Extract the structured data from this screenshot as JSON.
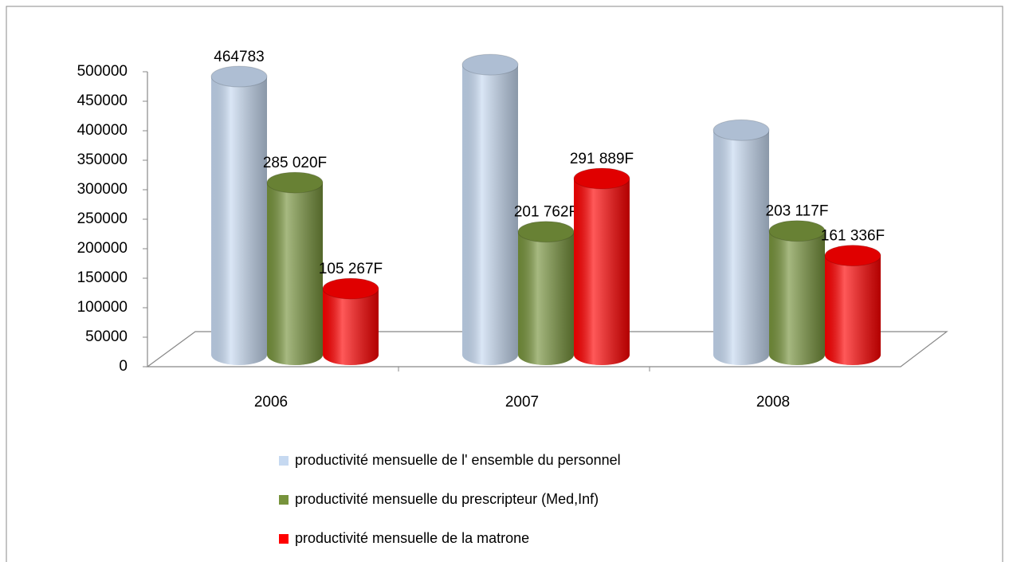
{
  "chart_data": {
    "type": "bar",
    "categories": [
      "2006",
      "2007",
      "2008"
    ],
    "series": [
      {
        "name": "productivité mensuelle de l' ensemble du personnel",
        "color": "#c6d9f1",
        "values": [
          464783,
          485000,
          374000
        ],
        "value_labels": [
          "464783",
          null,
          null
        ]
      },
      {
        "name": "productivité mensuelle du prescripteur (Med,Inf)",
        "color": "#77933c",
        "values": [
          285020,
          201762,
          203117
        ],
        "value_labels": [
          "285 020F",
          "201 762F",
          "203 117F"
        ]
      },
      {
        "name": "productivité mensuelle de la matrone",
        "color": "#ff0000",
        "values": [
          105267,
          291889,
          161336
        ],
        "value_labels": [
          "105 267F",
          "291 889F",
          "161 336F"
        ]
      }
    ],
    "ylim": [
      0,
      500000
    ],
    "yticks": [
      0,
      50000,
      100000,
      150000,
      200000,
      250000,
      300000,
      350000,
      400000,
      450000,
      500000
    ],
    "grid": false
  }
}
